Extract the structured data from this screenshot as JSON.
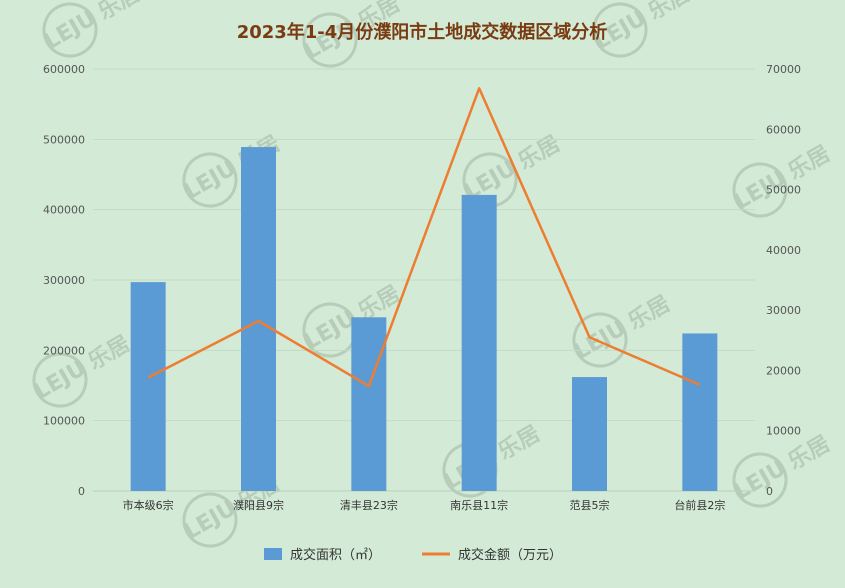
{
  "watermark": {
    "brand_cn": "乐居",
    "brand_en": "LEJU"
  },
  "chart_data": {
    "type": "bar",
    "title": "2023年1-4月份濮阳市土地成交数据区域分析",
    "categories": [
      "市本级6宗",
      "濮阳县9宗",
      "清丰县23宗",
      "南乐县11宗",
      "范县5宗",
      "台前县2宗"
    ],
    "series": [
      {
        "name": "成交面积（㎡）",
        "type": "bar",
        "axis": "left",
        "color": "#5b9bd5",
        "values": [
          297000,
          489000,
          247000,
          421000,
          162000,
          224000
        ]
      },
      {
        "name": "成交金额（万元）",
        "type": "line",
        "axis": "right",
        "color": "#ed7d31",
        "values": [
          18800,
          28200,
          17400,
          66800,
          25500,
          17600
        ]
      }
    ],
    "y_left": {
      "min": 0,
      "max": 600000,
      "ticks": [
        0,
        100000,
        200000,
        300000,
        400000,
        500000,
        600000
      ]
    },
    "y_right": {
      "min": 0,
      "max": 70000,
      "ticks": [
        0,
        10000,
        20000,
        30000,
        40000,
        50000,
        60000,
        70000
      ]
    },
    "grid": true,
    "legend_position": "bottom"
  }
}
